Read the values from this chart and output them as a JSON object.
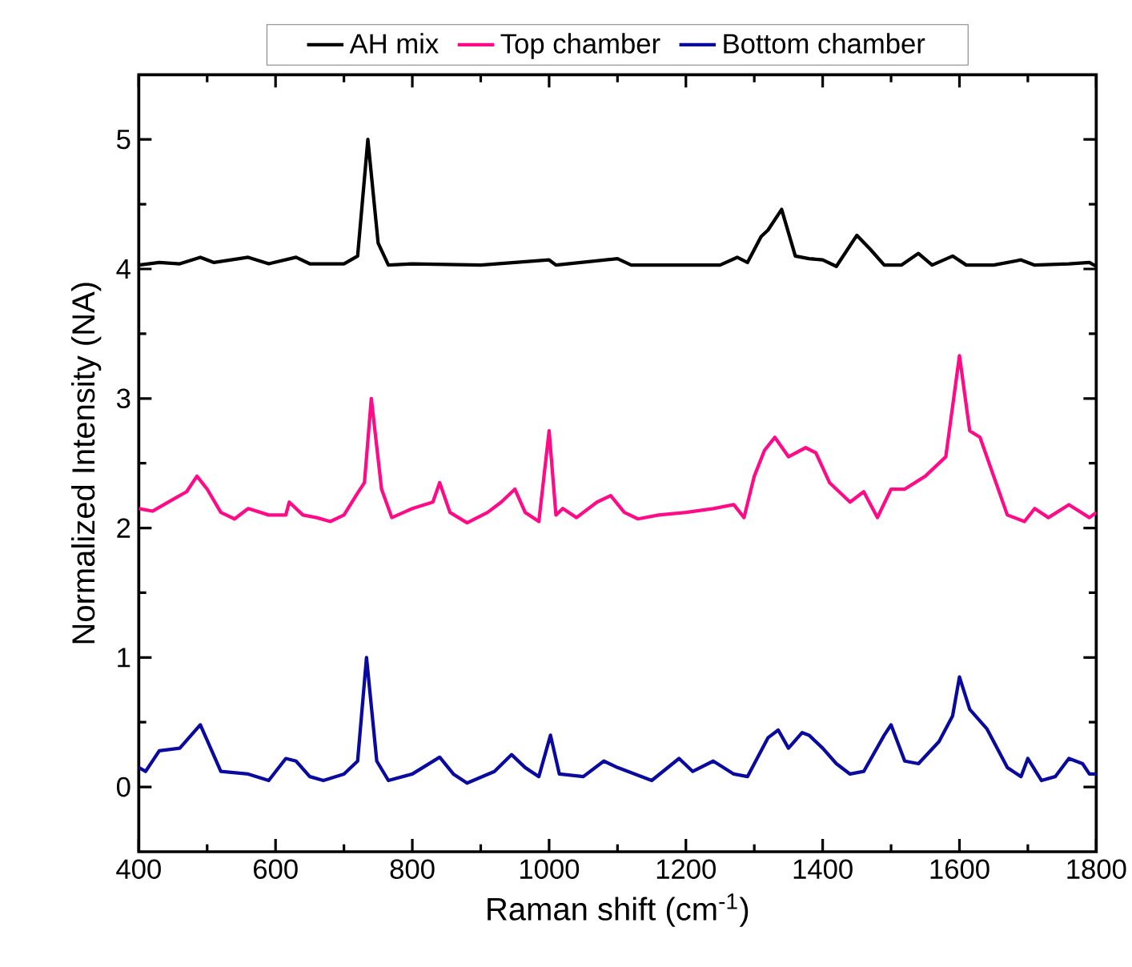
{
  "chart_data": {
    "type": "line",
    "xlabel": "Raman shift (cm$^{-1}$)",
    "ylabel": "Normalized Intensity (NA)",
    "xlim": [
      400,
      1800
    ],
    "ylim": [
      -0.5,
      5.5
    ],
    "xticks": [
      400,
      600,
      800,
      1000,
      1200,
      1400,
      1600,
      1800
    ],
    "yticks": [
      0,
      1,
      2,
      3,
      4,
      5
    ],
    "grid": false,
    "legend": "top",
    "marker": "none",
    "line_style": "solid",
    "series": [
      {
        "name": "AH mix",
        "color": "#000000",
        "x": [
          400,
          430,
          460,
          490,
          510,
          560,
          590,
          630,
          650,
          700,
          720,
          735,
          750,
          765,
          800,
          900,
          1000,
          1010,
          1100,
          1120,
          1250,
          1275,
          1290,
          1310,
          1320,
          1340,
          1360,
          1380,
          1400,
          1420,
          1450,
          1470,
          1490,
          1515,
          1540,
          1560,
          1590,
          1610,
          1650,
          1690,
          1710,
          1760,
          1790,
          1800
        ],
        "values": [
          4.03,
          4.05,
          4.04,
          4.09,
          4.05,
          4.09,
          4.04,
          4.09,
          4.04,
          4.04,
          4.1,
          5.0,
          4.2,
          4.03,
          4.04,
          4.03,
          4.07,
          4.03,
          4.08,
          4.03,
          4.03,
          4.09,
          4.05,
          4.25,
          4.3,
          4.46,
          4.1,
          4.08,
          4.07,
          4.02,
          4.26,
          4.15,
          4.03,
          4.03,
          4.12,
          4.03,
          4.1,
          4.03,
          4.03,
          4.07,
          4.03,
          4.04,
          4.05,
          4.02
        ]
      },
      {
        "name": "Top chamber",
        "color": "#ff0a87",
        "x": [
          400,
          420,
          450,
          470,
          485,
          500,
          520,
          540,
          560,
          590,
          615,
          620,
          640,
          660,
          680,
          700,
          720,
          730,
          740,
          755,
          770,
          800,
          830,
          840,
          855,
          880,
          910,
          930,
          950,
          965,
          985,
          1000,
          1010,
          1020,
          1040,
          1070,
          1090,
          1110,
          1130,
          1160,
          1200,
          1240,
          1270,
          1285,
          1300,
          1315,
          1330,
          1350,
          1375,
          1390,
          1410,
          1440,
          1460,
          1480,
          1500,
          1520,
          1550,
          1580,
          1600,
          1615,
          1630,
          1650,
          1670,
          1695,
          1710,
          1730,
          1760,
          1790,
          1800
        ],
        "values": [
          2.15,
          2.13,
          2.22,
          2.28,
          2.4,
          2.3,
          2.12,
          2.07,
          2.15,
          2.1,
          2.1,
          2.2,
          2.1,
          2.08,
          2.05,
          2.1,
          2.27,
          2.35,
          3.0,
          2.3,
          2.08,
          2.15,
          2.2,
          2.35,
          2.12,
          2.04,
          2.12,
          2.2,
          2.3,
          2.12,
          2.05,
          2.75,
          2.1,
          2.15,
          2.08,
          2.2,
          2.25,
          2.12,
          2.07,
          2.1,
          2.12,
          2.15,
          2.18,
          2.08,
          2.4,
          2.6,
          2.7,
          2.55,
          2.62,
          2.58,
          2.35,
          2.2,
          2.28,
          2.08,
          2.3,
          2.3,
          2.4,
          2.55,
          3.33,
          2.75,
          2.7,
          2.4,
          2.1,
          2.05,
          2.15,
          2.08,
          2.18,
          2.08,
          2.12
        ]
      },
      {
        "name": "Bottom chamber",
        "color": "#0a0a9e",
        "x": [
          400,
          410,
          430,
          460,
          480,
          490,
          505,
          520,
          560,
          590,
          615,
          630,
          650,
          670,
          700,
          720,
          733,
          748,
          765,
          800,
          840,
          860,
          880,
          920,
          945,
          965,
          985,
          1002,
          1015,
          1050,
          1080,
          1100,
          1150,
          1190,
          1210,
          1240,
          1270,
          1290,
          1320,
          1335,
          1350,
          1370,
          1380,
          1400,
          1420,
          1440,
          1460,
          1490,
          1500,
          1520,
          1540,
          1570,
          1590,
          1600,
          1615,
          1640,
          1670,
          1690,
          1700,
          1720,
          1740,
          1760,
          1780,
          1790,
          1800
        ],
        "values": [
          0.15,
          0.12,
          0.28,
          0.3,
          0.42,
          0.48,
          0.3,
          0.12,
          0.1,
          0.05,
          0.22,
          0.2,
          0.08,
          0.05,
          0.1,
          0.2,
          1.0,
          0.2,
          0.05,
          0.1,
          0.23,
          0.1,
          0.03,
          0.12,
          0.25,
          0.15,
          0.08,
          0.4,
          0.1,
          0.08,
          0.2,
          0.15,
          0.05,
          0.22,
          0.12,
          0.2,
          0.1,
          0.08,
          0.38,
          0.44,
          0.3,
          0.42,
          0.4,
          0.3,
          0.18,
          0.1,
          0.12,
          0.4,
          0.48,
          0.2,
          0.18,
          0.35,
          0.55,
          0.85,
          0.6,
          0.45,
          0.15,
          0.08,
          0.22,
          0.05,
          0.08,
          0.22,
          0.18,
          0.1,
          0.1
        ]
      }
    ]
  }
}
